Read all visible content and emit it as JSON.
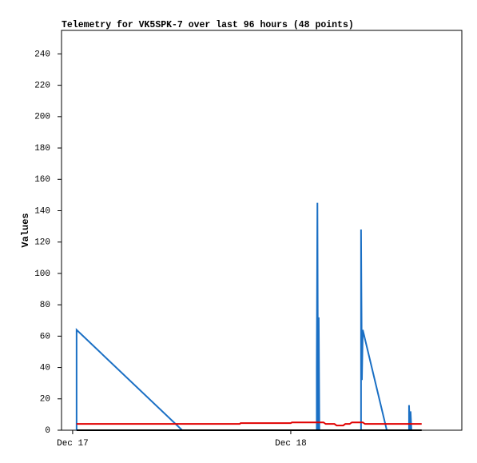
{
  "chart_data": {
    "type": "line",
    "title": "Telemetry for VK5SPK-7 over last 96 hours (48 points)",
    "y_label": "Values",
    "xlim": [
      -0.051,
      1.784
    ],
    "xticks": [
      {
        "value": 0,
        "label": "Dec 17"
      },
      {
        "value": 1,
        "label": "Dec 18"
      }
    ],
    "ylim": [
      0,
      255
    ],
    "yticks": [
      0,
      20,
      40,
      60,
      80,
      100,
      120,
      140,
      160,
      180,
      200,
      220,
      240
    ],
    "grid": false,
    "series": [
      {
        "color": "#1a6fc4",
        "x": [
          0.018,
          0.018,
          0.502,
          1.119,
          1.119,
          1.122,
          1.125,
          1.128,
          1.131,
          1.322,
          1.322,
          1.326,
          1.33,
          1.44,
          1.542,
          1.542,
          1.546,
          1.549,
          1.553
        ],
        "values": [
          0,
          64,
          0,
          0,
          40,
          145,
          0,
          72,
          0,
          0,
          128,
          32,
          64,
          0,
          0,
          16,
          0,
          12,
          0
        ]
      },
      {
        "color": "#e00000",
        "x": [
          0.018,
          0.766,
          0.77,
          1.0,
          1.005,
          1.15,
          1.16,
          1.2,
          1.21,
          1.24,
          1.25,
          1.27,
          1.28,
          1.33,
          1.34,
          1.6
        ],
        "values": [
          4,
          4,
          4.5,
          4.5,
          5,
          5,
          4,
          4,
          3,
          3,
          4,
          4,
          5,
          5,
          4,
          4
        ]
      },
      {
        "color": "#000000",
        "x": [
          0.018,
          1.6
        ],
        "values": [
          0,
          0
        ]
      }
    ]
  }
}
